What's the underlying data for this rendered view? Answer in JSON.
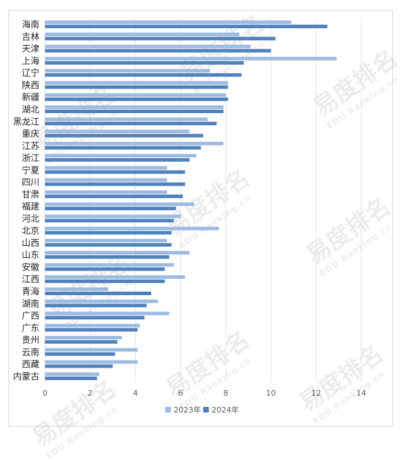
{
  "chart_data": {
    "type": "bar",
    "orientation": "horizontal",
    "title": "",
    "xlabel": "",
    "ylabel": "",
    "xlim": [
      0,
      14
    ],
    "xticks": [
      "0",
      "2",
      "4",
      "6",
      "8",
      "10",
      "12",
      "14"
    ],
    "grid": "vertical",
    "legend_position": "bottom",
    "categories": [
      "海南",
      "吉林",
      "天津",
      "上海",
      "辽宁",
      "陕西",
      "新疆",
      "湖北",
      "黑龙江",
      "重庆",
      "江苏",
      "浙江",
      "宁夏",
      "四川",
      "甘肃",
      "福建",
      "河北",
      "北京",
      "山西",
      "山东",
      "安徽",
      "江西",
      "青海",
      "湖南",
      "广西",
      "广东",
      "贵州",
      "云南",
      "西藏",
      "内蒙古"
    ],
    "series": [
      {
        "name": "2023年",
        "color": "#9dbbe0",
        "values": [
          10.9,
          8.6,
          9.1,
          12.9,
          7.3,
          8.1,
          8.0,
          7.9,
          7.2,
          6.4,
          7.9,
          6.7,
          5.4,
          5.4,
          5.4,
          6.6,
          6.0,
          7.7,
          5.4,
          6.4,
          5.7,
          6.2,
          2.8,
          5.0,
          5.5,
          4.2,
          3.4,
          4.1,
          4.1,
          2.4
        ]
      },
      {
        "name": "2024年",
        "color": "#4f81bd",
        "values": [
          12.5,
          10.2,
          10.0,
          8.8,
          8.7,
          8.1,
          8.1,
          7.9,
          7.6,
          7.0,
          6.9,
          6.4,
          6.2,
          6.2,
          6.1,
          5.8,
          5.7,
          5.6,
          5.6,
          5.5,
          5.3,
          5.3,
          4.7,
          4.5,
          4.4,
          4.1,
          3.2,
          3.1,
          3.0,
          2.3
        ]
      }
    ]
  },
  "watermark": {
    "text": "易度排名",
    "subtext": "EDU Ranking.cn"
  }
}
